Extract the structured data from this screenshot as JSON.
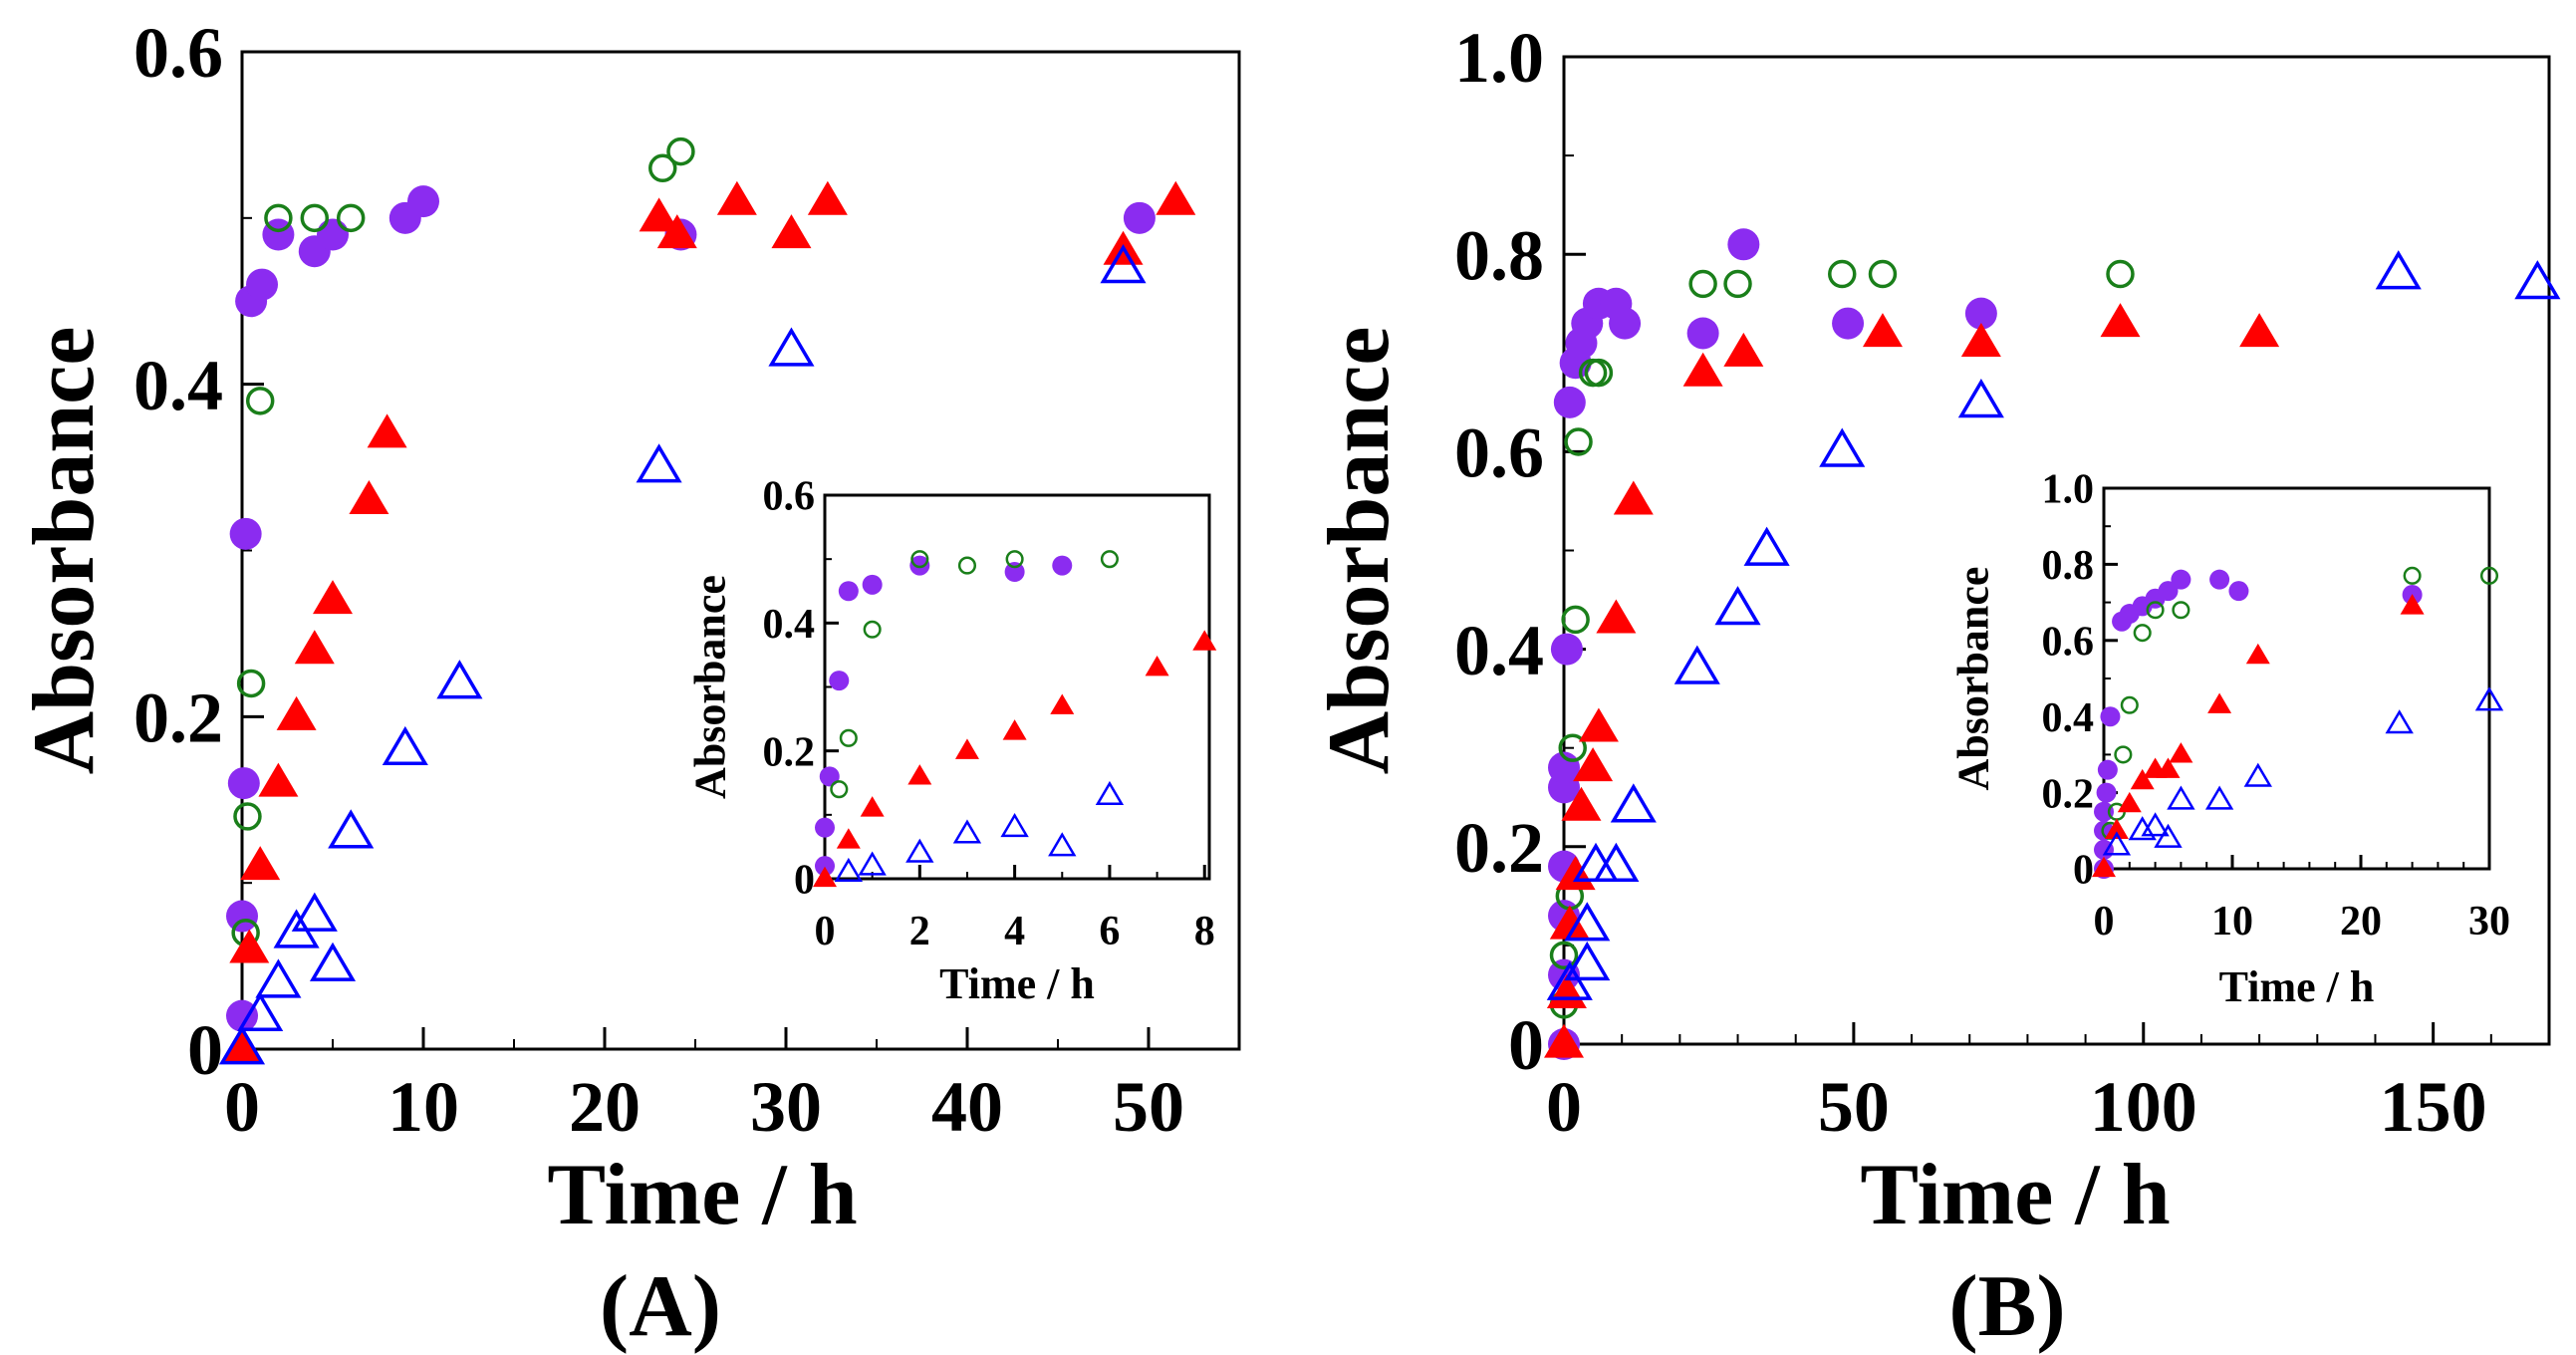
{
  "chart_data": [
    {
      "type": "scatter",
      "panel_label": "(A)",
      "xlabel": "Time / h",
      "ylabel": "Absorbance",
      "xlim": [
        0,
        55
      ],
      "ylim": [
        0,
        0.6
      ],
      "xticks": [
        "0",
        "10",
        "20",
        "30",
        "40",
        "50"
      ],
      "yticks": [
        "0",
        "0.2",
        "0.4",
        "0.6"
      ],
      "grid": false,
      "series": [
        {
          "marker": "filled-circle",
          "color": "#8b2cf0",
          "points": [
            [
              0,
              0.02
            ],
            [
              0,
              0.08
            ],
            [
              0.1,
              0.16
            ],
            [
              0.2,
              0.31
            ],
            [
              0.5,
              0.45
            ],
            [
              1.1,
              0.46
            ],
            [
              2,
              0.49
            ],
            [
              4,
              0.48
            ],
            [
              5,
              0.49
            ],
            [
              9,
              0.5
            ],
            [
              10,
              0.51
            ],
            [
              24.2,
              0.49
            ],
            [
              49.5,
              0.5
            ]
          ]
        },
        {
          "marker": "open-circle",
          "color": "#1a7f1a",
          "points": [
            [
              0.2,
              0.07
            ],
            [
              0.3,
              0.14
            ],
            [
              0.5,
              0.22
            ],
            [
              1,
              0.39
            ],
            [
              2,
              0.5
            ],
            [
              4,
              0.5
            ],
            [
              6,
              0.5
            ],
            [
              23.2,
              0.53
            ],
            [
              24.2,
              0.54
            ]
          ]
        },
        {
          "marker": "filled-triangle",
          "color": "#ff0000",
          "points": [
            [
              0,
              0
            ],
            [
              0.4,
              0.06
            ],
            [
              1,
              0.11
            ],
            [
              2,
              0.16
            ],
            [
              3,
              0.2
            ],
            [
              4,
              0.24
            ],
            [
              5,
              0.27
            ],
            [
              7,
              0.33
            ],
            [
              8,
              0.37
            ],
            [
              23,
              0.5
            ],
            [
              24,
              0.49
            ],
            [
              27.3,
              0.51
            ],
            [
              30.3,
              0.49
            ],
            [
              32.3,
              0.51
            ],
            [
              48.6,
              0.48
            ],
            [
              51.5,
              0.51
            ]
          ]
        },
        {
          "marker": "open-triangle",
          "color": "#0000ff",
          "points": [
            [
              0,
              0
            ],
            [
              1,
              0.02
            ],
            [
              2,
              0.04
            ],
            [
              3,
              0.07
            ],
            [
              4,
              0.08
            ],
            [
              5,
              0.05
            ],
            [
              6,
              0.13
            ],
            [
              9,
              0.18
            ],
            [
              12,
              0.22
            ],
            [
              23,
              0.35
            ],
            [
              30.3,
              0.42
            ],
            [
              48.6,
              0.47
            ]
          ]
        }
      ]
    },
    {
      "type": "scatter",
      "inset_of": "(A)",
      "xlabel": "Time / h",
      "ylabel": "Absorbance",
      "xlim": [
        0,
        8.1
      ],
      "ylim": [
        0,
        0.6
      ],
      "xticks": [
        "0",
        "2",
        "4",
        "6",
        "8"
      ],
      "yticks": [
        "0",
        "0.2",
        "0.4",
        "0.6"
      ],
      "grid": false,
      "series": [
        {
          "marker": "filled-circle",
          "color": "#8b2cf0",
          "points": [
            [
              0,
              0.02
            ],
            [
              0,
              0.08
            ],
            [
              0.1,
              0.16
            ],
            [
              0.3,
              0.31
            ],
            [
              0.5,
              0.45
            ],
            [
              1,
              0.46
            ],
            [
              2,
              0.49
            ],
            [
              4,
              0.48
            ],
            [
              5,
              0.49
            ]
          ]
        },
        {
          "marker": "open-circle",
          "color": "#1a7f1a",
          "points": [
            [
              0.3,
              0.14
            ],
            [
              0.5,
              0.22
            ],
            [
              1,
              0.39
            ],
            [
              2,
              0.5
            ],
            [
              3,
              0.49
            ],
            [
              4,
              0.5
            ],
            [
              6,
              0.5
            ]
          ]
        },
        {
          "marker": "filled-triangle",
          "color": "#ff0000",
          "points": [
            [
              0,
              0
            ],
            [
              0.5,
              0.06
            ],
            [
              1,
              0.11
            ],
            [
              2,
              0.16
            ],
            [
              3,
              0.2
            ],
            [
              4,
              0.23
            ],
            [
              5,
              0.27
            ],
            [
              7,
              0.33
            ],
            [
              8,
              0.37
            ]
          ]
        },
        {
          "marker": "open-triangle",
          "color": "#0000ff",
          "points": [
            [
              0.5,
              0.01
            ],
            [
              1,
              0.02
            ],
            [
              2,
              0.04
            ],
            [
              3,
              0.07
            ],
            [
              4,
              0.08
            ],
            [
              5,
              0.05
            ],
            [
              6,
              0.13
            ]
          ]
        }
      ]
    },
    {
      "type": "scatter",
      "panel_label": "(B)",
      "xlabel": "Time / h",
      "ylabel": "Absorbance",
      "xlim": [
        0,
        170
      ],
      "ylim": [
        0,
        1.0
      ],
      "xticks": [
        "0",
        "50",
        "100",
        "150"
      ],
      "yticks": [
        "0",
        "0.2",
        "0.4",
        "0.6",
        "0.8",
        "1.0"
      ],
      "grid": false,
      "series": [
        {
          "marker": "filled-circle",
          "color": "#8b2cf0",
          "points": [
            [
              0,
              0
            ],
            [
              0,
              0.07
            ],
            [
              0,
              0.13
            ],
            [
              0,
              0.18
            ],
            [
              0,
              0.26
            ],
            [
              0,
              0.28
            ],
            [
              0.5,
              0.4
            ],
            [
              1,
              0.65
            ],
            [
              2,
              0.69
            ],
            [
              3,
              0.71
            ],
            [
              4,
              0.73
            ],
            [
              6,
              0.75
            ],
            [
              9,
              0.75
            ],
            [
              10.5,
              0.73
            ],
            [
              24,
              0.72
            ],
            [
              31,
              0.81
            ],
            [
              49,
              0.73
            ],
            [
              72,
              0.74
            ]
          ]
        },
        {
          "marker": "open-circle",
          "color": "#1a7f1a",
          "points": [
            [
              0,
              0.04
            ],
            [
              0,
              0.09
            ],
            [
              1,
              0.15
            ],
            [
              1.5,
              0.3
            ],
            [
              2,
              0.43
            ],
            [
              2.5,
              0.61
            ],
            [
              5,
              0.68
            ],
            [
              6,
              0.68
            ],
            [
              24,
              0.77
            ],
            [
              30,
              0.77
            ],
            [
              48,
              0.78
            ],
            [
              55,
              0.78
            ],
            [
              96,
              0.78
            ]
          ]
        },
        {
          "marker": "filled-triangle",
          "color": "#ff0000",
          "points": [
            [
              0,
              0
            ],
            [
              0.5,
              0.05
            ],
            [
              1,
              0.12
            ],
            [
              2,
              0.17
            ],
            [
              3,
              0.24
            ],
            [
              5,
              0.28
            ],
            [
              6,
              0.32
            ],
            [
              9,
              0.43
            ],
            [
              12,
              0.55
            ],
            [
              24,
              0.68
            ],
            [
              31,
              0.7
            ],
            [
              55,
              0.72
            ],
            [
              72,
              0.71
            ],
            [
              96,
              0.73
            ],
            [
              120,
              0.72
            ]
          ]
        },
        {
          "marker": "open-triangle",
          "color": "#0000ff",
          "points": [
            [
              1,
              0.06
            ],
            [
              4,
              0.08
            ],
            [
              4,
              0.12
            ],
            [
              5.5,
              0.18
            ],
            [
              9,
              0.18
            ],
            [
              12,
              0.24
            ],
            [
              23,
              0.38
            ],
            [
              30,
              0.44
            ],
            [
              35,
              0.5
            ],
            [
              48,
              0.6
            ],
            [
              72,
              0.65
            ],
            [
              144,
              0.78
            ],
            [
              168,
              0.77
            ]
          ]
        }
      ]
    },
    {
      "type": "scatter",
      "inset_of": "(B)",
      "xlabel": "Time / h",
      "ylabel": "Absorbance",
      "xlim": [
        0,
        30
      ],
      "ylim": [
        0,
        1.0
      ],
      "xticks": [
        "0",
        "10",
        "20",
        "30"
      ],
      "yticks": [
        "0",
        "0.2",
        "0.4",
        "0.6",
        "0.8",
        "1.0"
      ],
      "grid": false,
      "series": [
        {
          "marker": "filled-circle",
          "color": "#8b2cf0",
          "points": [
            [
              0,
              0
            ],
            [
              0,
              0.05
            ],
            [
              0,
              0.1
            ],
            [
              0,
              0.15
            ],
            [
              0.2,
              0.2
            ],
            [
              0.3,
              0.26
            ],
            [
              0.5,
              0.4
            ],
            [
              1.4,
              0.65
            ],
            [
              2,
              0.67
            ],
            [
              3,
              0.69
            ],
            [
              4,
              0.71
            ],
            [
              5,
              0.73
            ],
            [
              6,
              0.76
            ],
            [
              9,
              0.76
            ],
            [
              10.5,
              0.73
            ],
            [
              24,
              0.72
            ]
          ]
        },
        {
          "marker": "open-circle",
          "color": "#1a7f1a",
          "points": [
            [
              0.5,
              0.1
            ],
            [
              1,
              0.15
            ],
            [
              1.5,
              0.3
            ],
            [
              2,
              0.43
            ],
            [
              3,
              0.62
            ],
            [
              4,
              0.68
            ],
            [
              6,
              0.68
            ],
            [
              24,
              0.77
            ],
            [
              30,
              0.77
            ]
          ]
        },
        {
          "marker": "filled-triangle",
          "color": "#ff0000",
          "points": [
            [
              0,
              0
            ],
            [
              1,
              0.1
            ],
            [
              2,
              0.17
            ],
            [
              3,
              0.23
            ],
            [
              4,
              0.26
            ],
            [
              5,
              0.26
            ],
            [
              6,
              0.3
            ],
            [
              9,
              0.43
            ],
            [
              12,
              0.56
            ],
            [
              24,
              0.69
            ]
          ]
        },
        {
          "marker": "open-triangle",
          "color": "#0000ff",
          "points": [
            [
              1,
              0.06
            ],
            [
              3,
              0.1
            ],
            [
              4,
              0.11
            ],
            [
              5,
              0.08
            ],
            [
              6,
              0.18
            ],
            [
              9,
              0.18
            ],
            [
              12,
              0.24
            ],
            [
              23,
              0.38
            ],
            [
              30,
              0.44
            ]
          ]
        }
      ]
    }
  ]
}
